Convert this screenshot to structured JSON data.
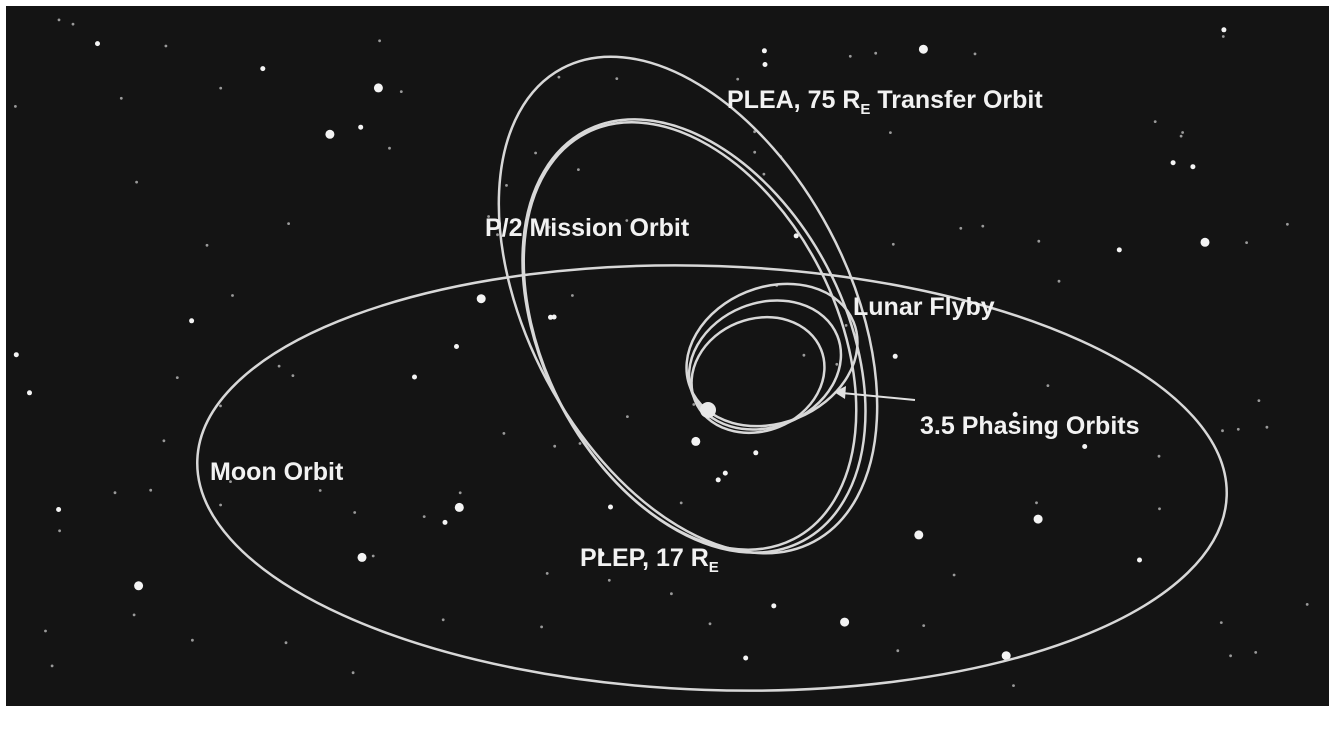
{
  "labels": [
    {
      "text": "PLEA, 75 R",
      "subscript": "E",
      "suffix": " Transfer Orbit"
    },
    {
      "text": "P/2 Mission Orbit"
    },
    {
      "text": "Lunar Flyby"
    },
    {
      "text": "3.5 Phasing Orbits"
    },
    {
      "text": "Moon Orbit"
    },
    {
      "text": "PLEP, 17 R",
      "subscript": "E"
    }
  ]
}
